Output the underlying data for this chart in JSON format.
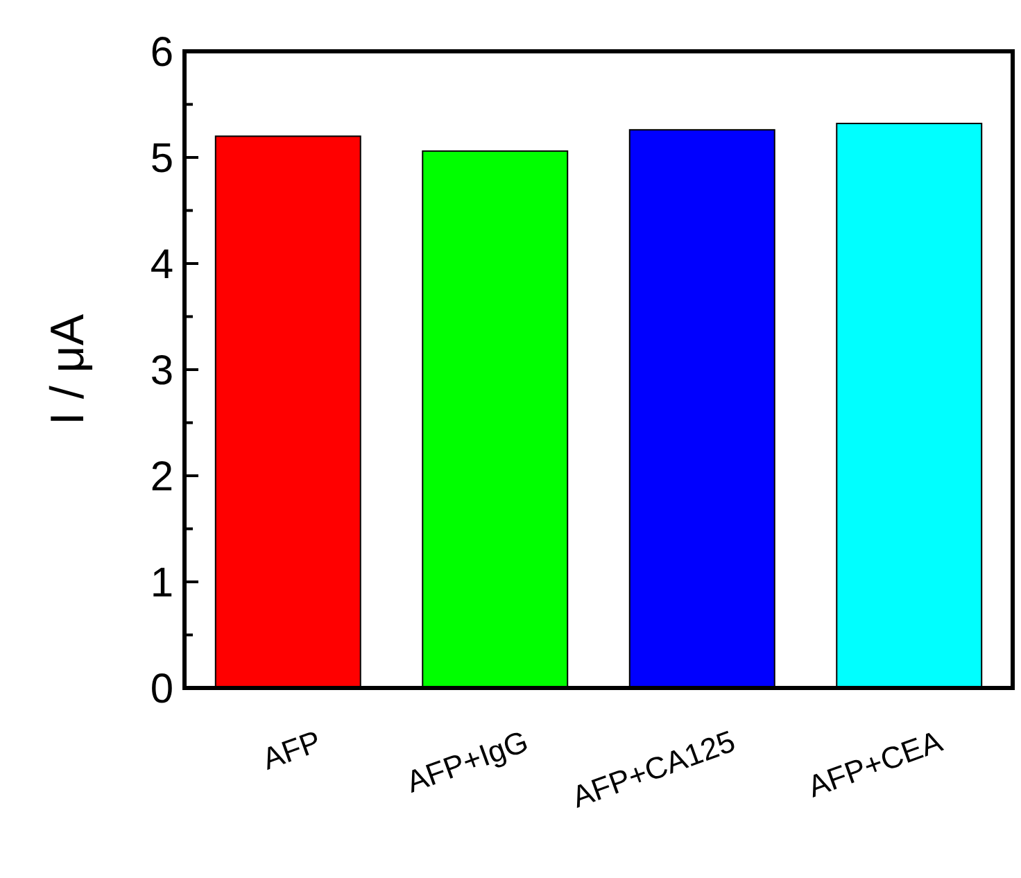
{
  "chart_data": {
    "type": "bar",
    "ylabel": "I / μA",
    "categories": [
      "AFP",
      "AFP+IgG",
      "AFP+CA125",
      "AFP+CEA"
    ],
    "values": [
      5.2,
      5.06,
      5.26,
      5.32
    ],
    "colors": [
      "#ff0000",
      "#00ff00",
      "#0000ff",
      "#00ffff"
    ],
    "ylim": [
      0,
      6
    ],
    "yticks": [
      0,
      1,
      2,
      3,
      4,
      5,
      6
    ]
  }
}
